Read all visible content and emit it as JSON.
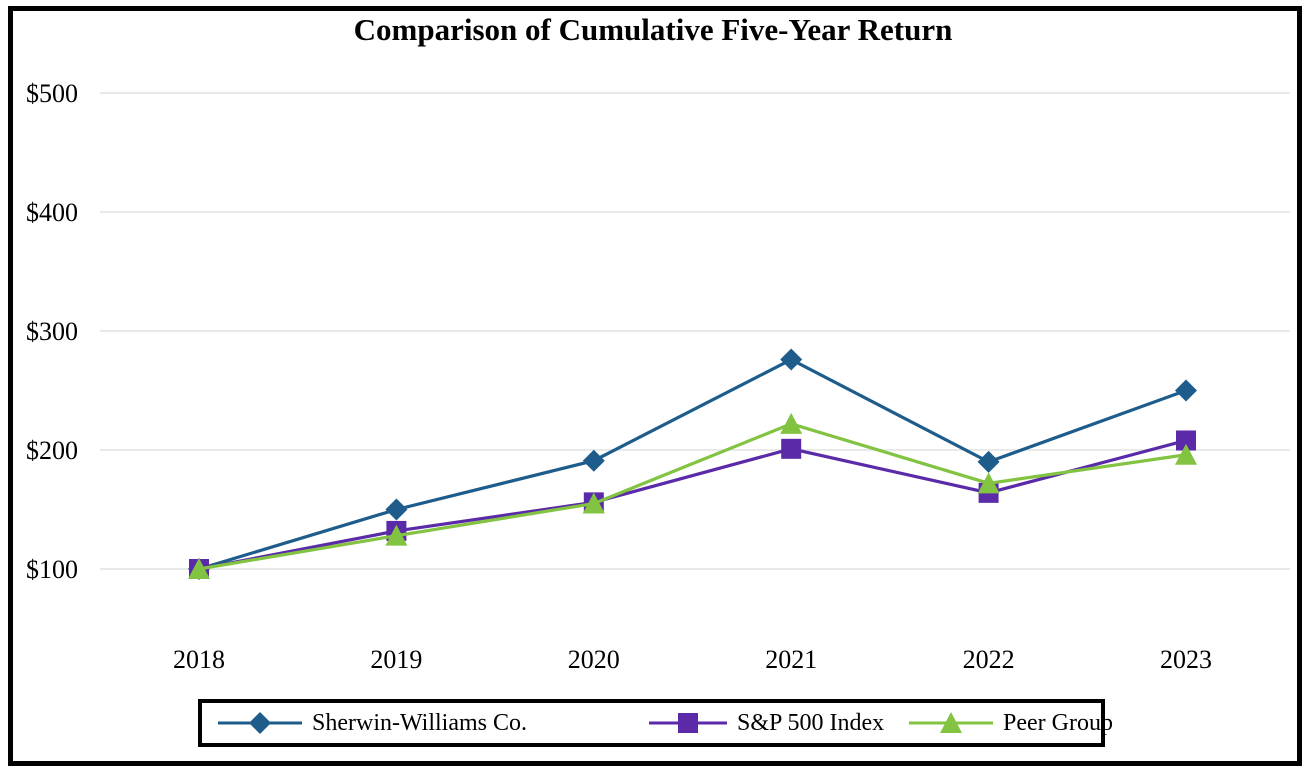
{
  "chart_data": {
    "type": "line",
    "title": "Comparison of Cumulative Five-Year Return",
    "categories": [
      "2018",
      "2019",
      "2020",
      "2021",
      "2022",
      "2023"
    ],
    "series": [
      {
        "name": "Sherwin-Williams Co.",
        "marker": "diamond",
        "color": "#1E5C8B",
        "values": [
          100,
          150,
          191,
          276,
          190,
          250
        ]
      },
      {
        "name": "S&P 500 Index",
        "marker": "square",
        "color": "#5B2AA8",
        "values": [
          100,
          132,
          156,
          201,
          164,
          208
        ]
      },
      {
        "name": "Peer Group",
        "marker": "triangle",
        "color": "#82C341",
        "values": [
          100,
          128,
          155,
          222,
          172,
          196
        ]
      }
    ],
    "y_ticks": [
      {
        "label": "$500",
        "value": 500
      },
      {
        "label": "$400",
        "value": 400
      },
      {
        "label": "$300",
        "value": 300
      },
      {
        "label": "$200",
        "value": 200
      },
      {
        "label": "$100",
        "value": 100
      }
    ],
    "ylim": [
      100,
      500
    ],
    "xlabel": "",
    "ylabel": "",
    "grid": true,
    "gridline_color": "#E9E9E9",
    "legend_position": "bottom"
  }
}
